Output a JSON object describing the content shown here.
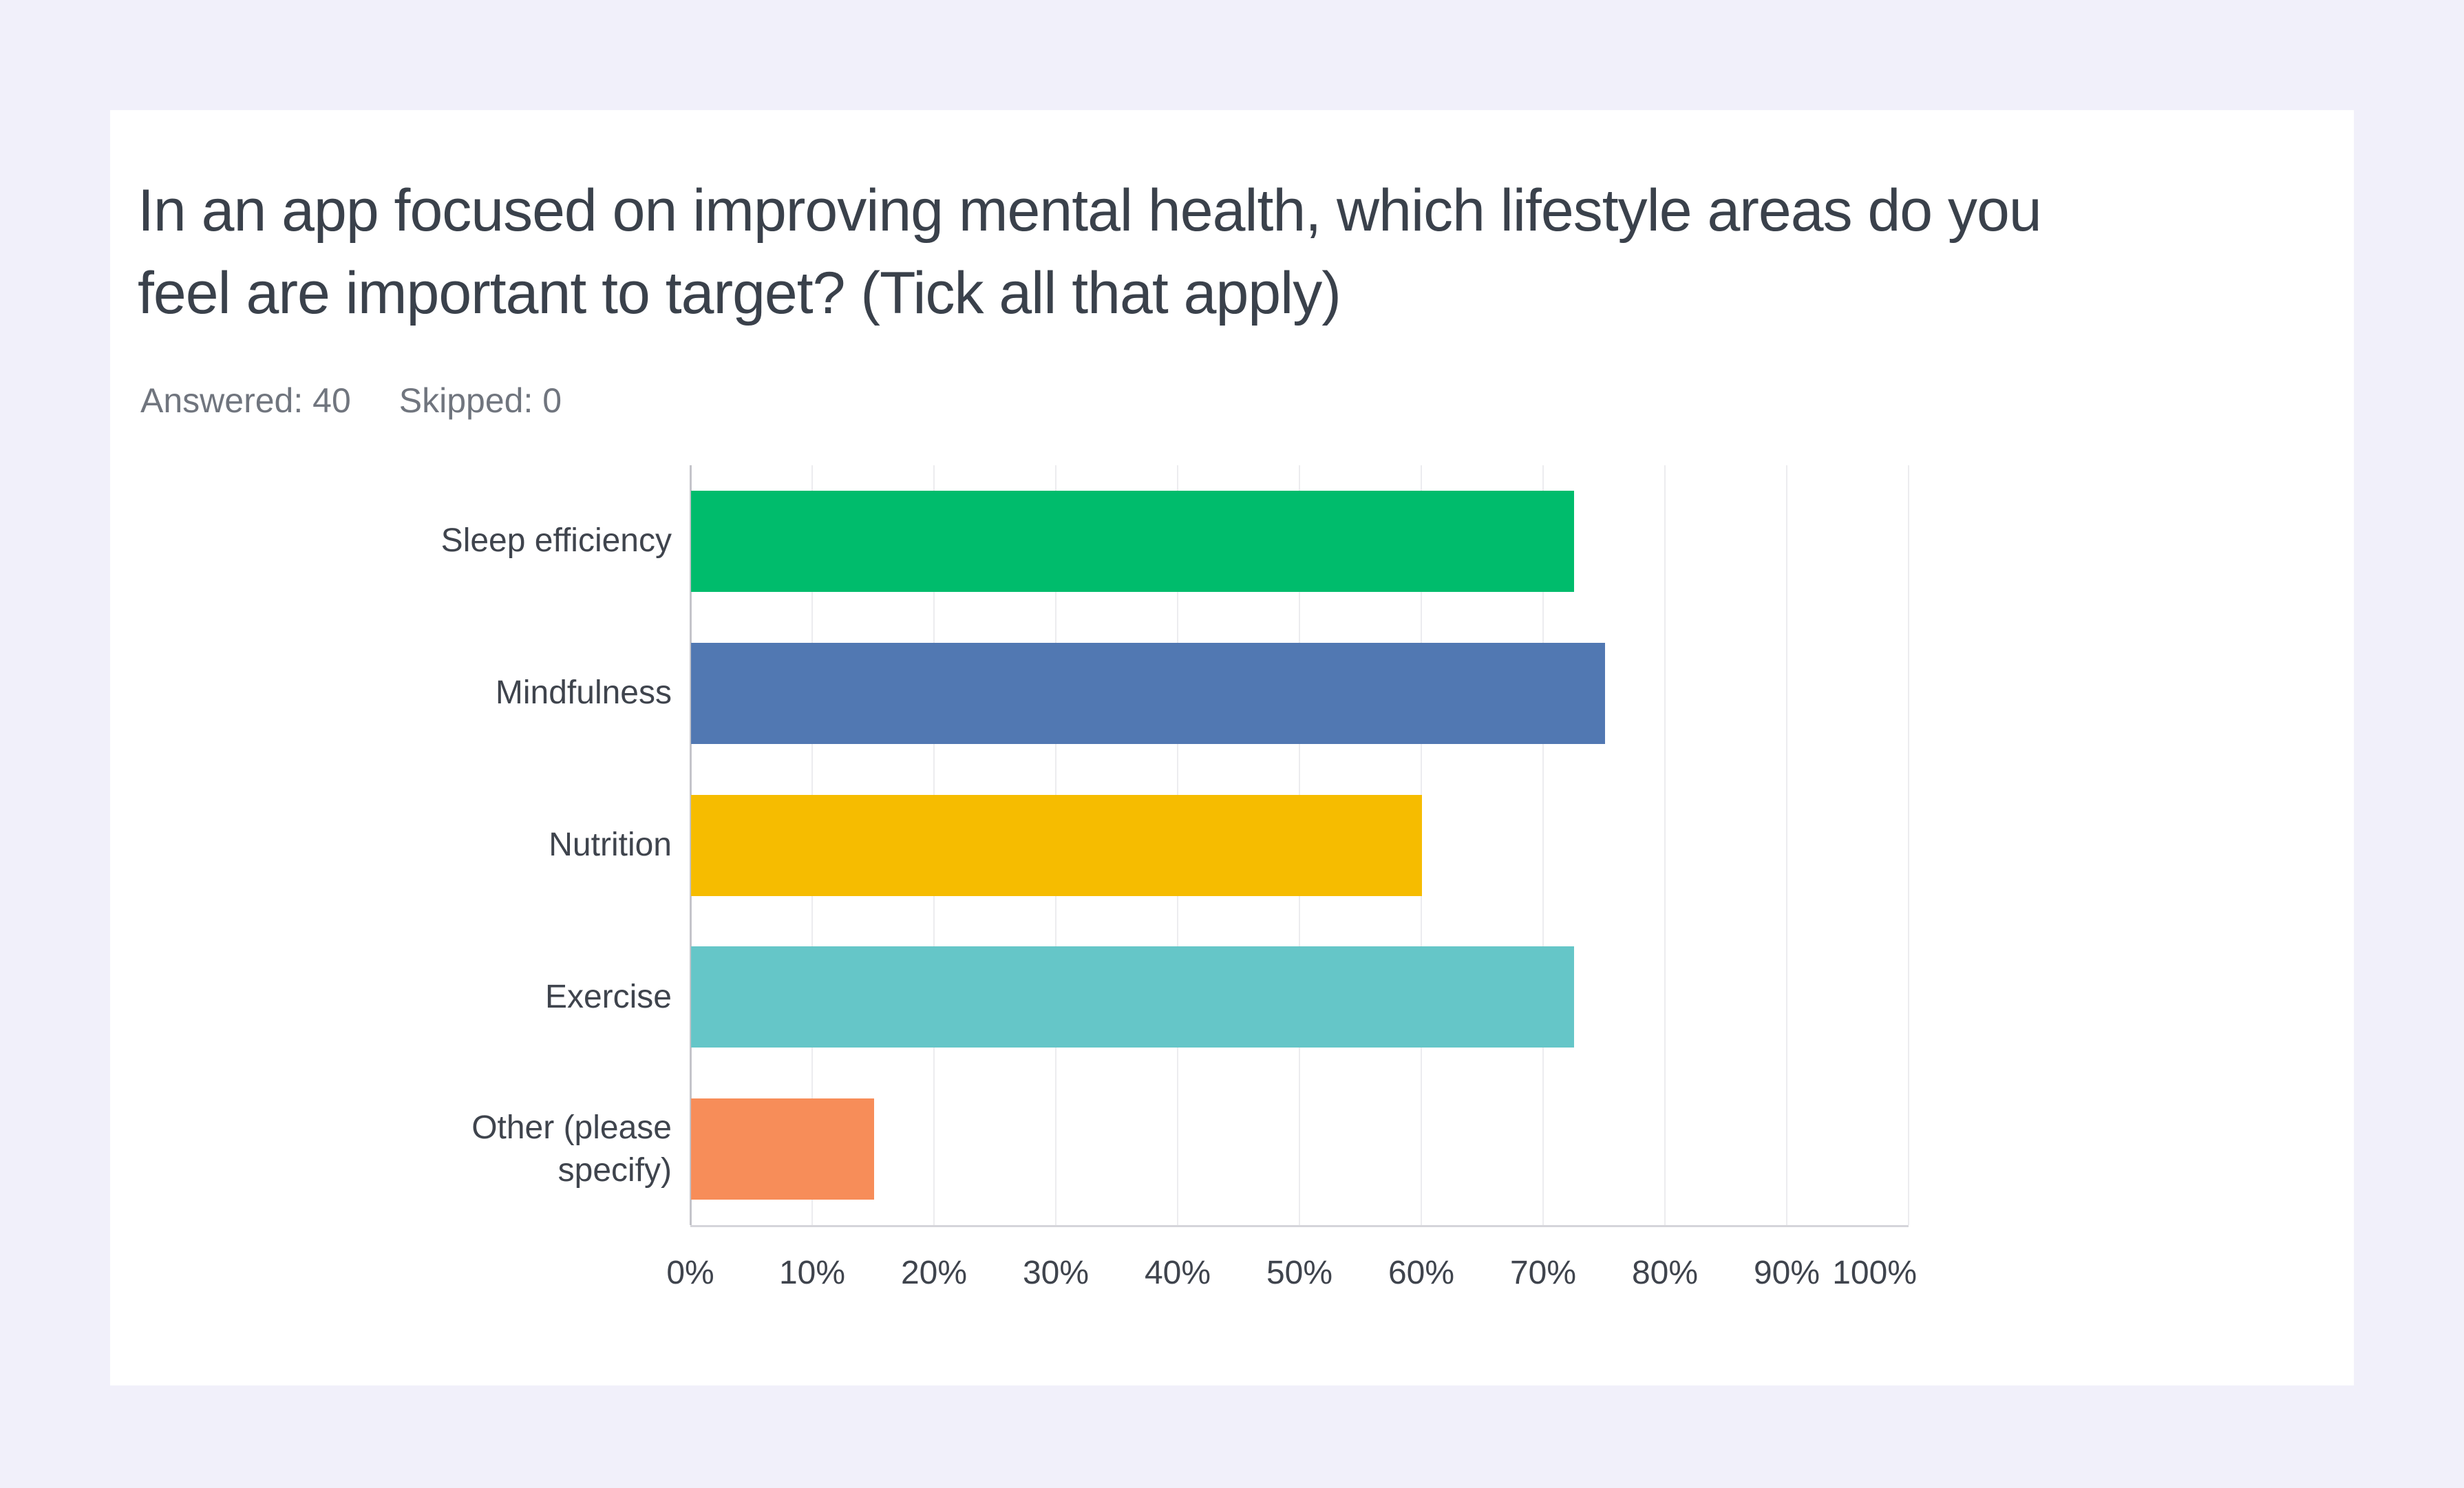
{
  "page": {
    "background_color": "#F1F0FA",
    "card_color": "#FFFFFF"
  },
  "question": {
    "title_lines": [
      "In an app focused on improving mental health, which lifestyle areas do you",
      "feel are important to target? (Tick all that apply)"
    ],
    "answered_label": "Answered:",
    "answered_value": "40",
    "skipped_label": "Skipped:",
    "skipped_value": "0"
  },
  "chart_data": {
    "type": "bar",
    "orientation": "horizontal",
    "title": "In an app focused on improving mental health, which lifestyle areas do you feel are important to target? (Tick all that apply)",
    "categories": [
      "Sleep efficiency",
      "Mindfulness",
      "Nutrition",
      "Exercise",
      "Other (please specify)"
    ],
    "values": [
      72.5,
      75,
      60,
      72.5,
      15
    ],
    "unit": "%",
    "bar_colors": [
      "#00BC6C",
      "#5178B2",
      "#F6BC00",
      "#65C6C8",
      "#F78D59"
    ],
    "x_ticks": [
      "0%",
      "10%",
      "20%",
      "30%",
      "40%",
      "50%",
      "60%",
      "70%",
      "80%",
      "90%",
      "100%"
    ],
    "xlim": [
      0,
      100
    ],
    "grid": true,
    "legend": false,
    "axis_color": "#C4C4CA",
    "gridline_color": "#ECECEF",
    "baseline_color": "#D5D5DA",
    "label_color": "#3F444D"
  }
}
